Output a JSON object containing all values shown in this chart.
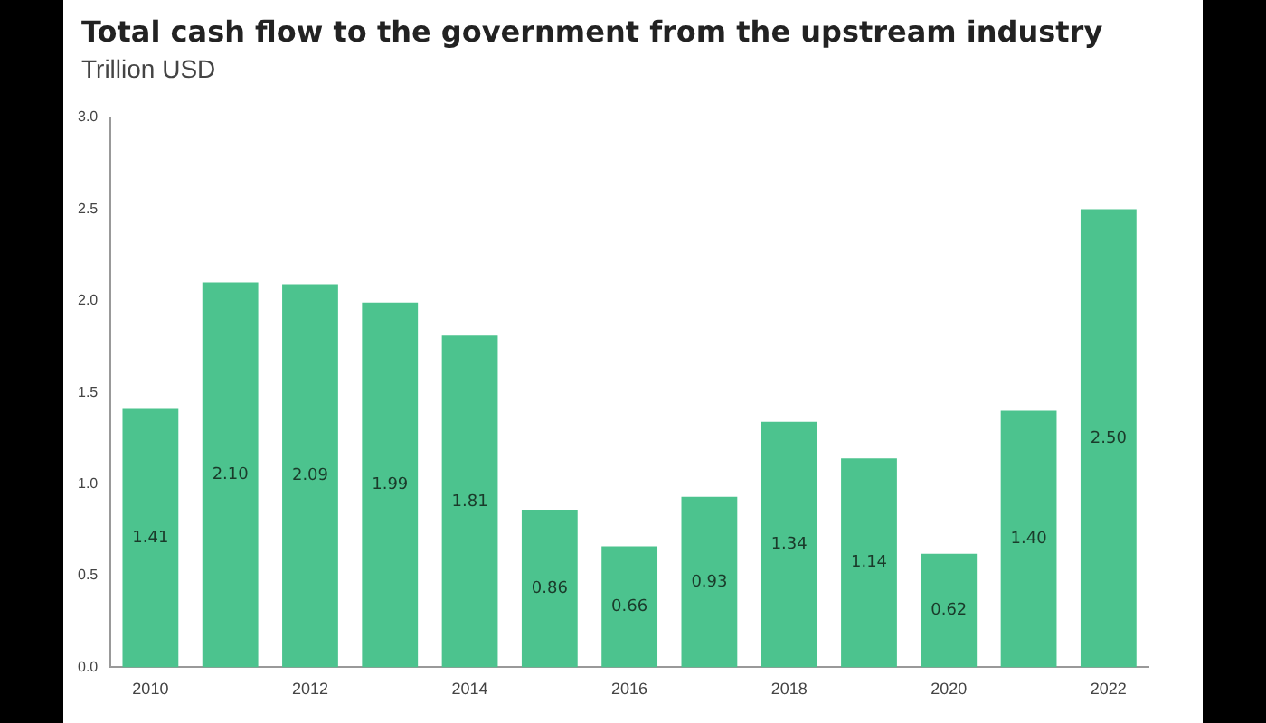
{
  "chart_data": {
    "type": "bar",
    "title": "Total cash flow to the government from the upstream industry",
    "subtitle": "Trillion USD",
    "categories": [
      "2010",
      null,
      "2012",
      null,
      "2014",
      null,
      "2016",
      null,
      "2018",
      null,
      "2020",
      null,
      "2022"
    ],
    "values": [
      1.41,
      2.1,
      2.09,
      1.99,
      1.81,
      0.86,
      0.66,
      0.93,
      1.34,
      1.14,
      0.62,
      1.4,
      2.5
    ],
    "value_labels": [
      "1.41",
      "2.10",
      "2.09",
      "1.99",
      "1.81",
      "0.86",
      "0.66",
      "0.93",
      "1.34",
      "1.14",
      "0.62",
      "1.40",
      "2.50"
    ],
    "color": "#4cc38e",
    "ylim": [
      0,
      3
    ],
    "yticks": [
      {
        "value": 0,
        "label": "0.0"
      },
      {
        "value": 0.5,
        "label": "0.5"
      },
      {
        "value": 1,
        "label": "1.0"
      },
      {
        "value": 1.5,
        "label": "1.5"
      },
      {
        "value": 2,
        "label": "2.0"
      },
      {
        "value": 2.5,
        "label": "2.5"
      },
      {
        "value": 3,
        "label": "3.0"
      }
    ],
    "grid": false,
    "legend": false
  }
}
